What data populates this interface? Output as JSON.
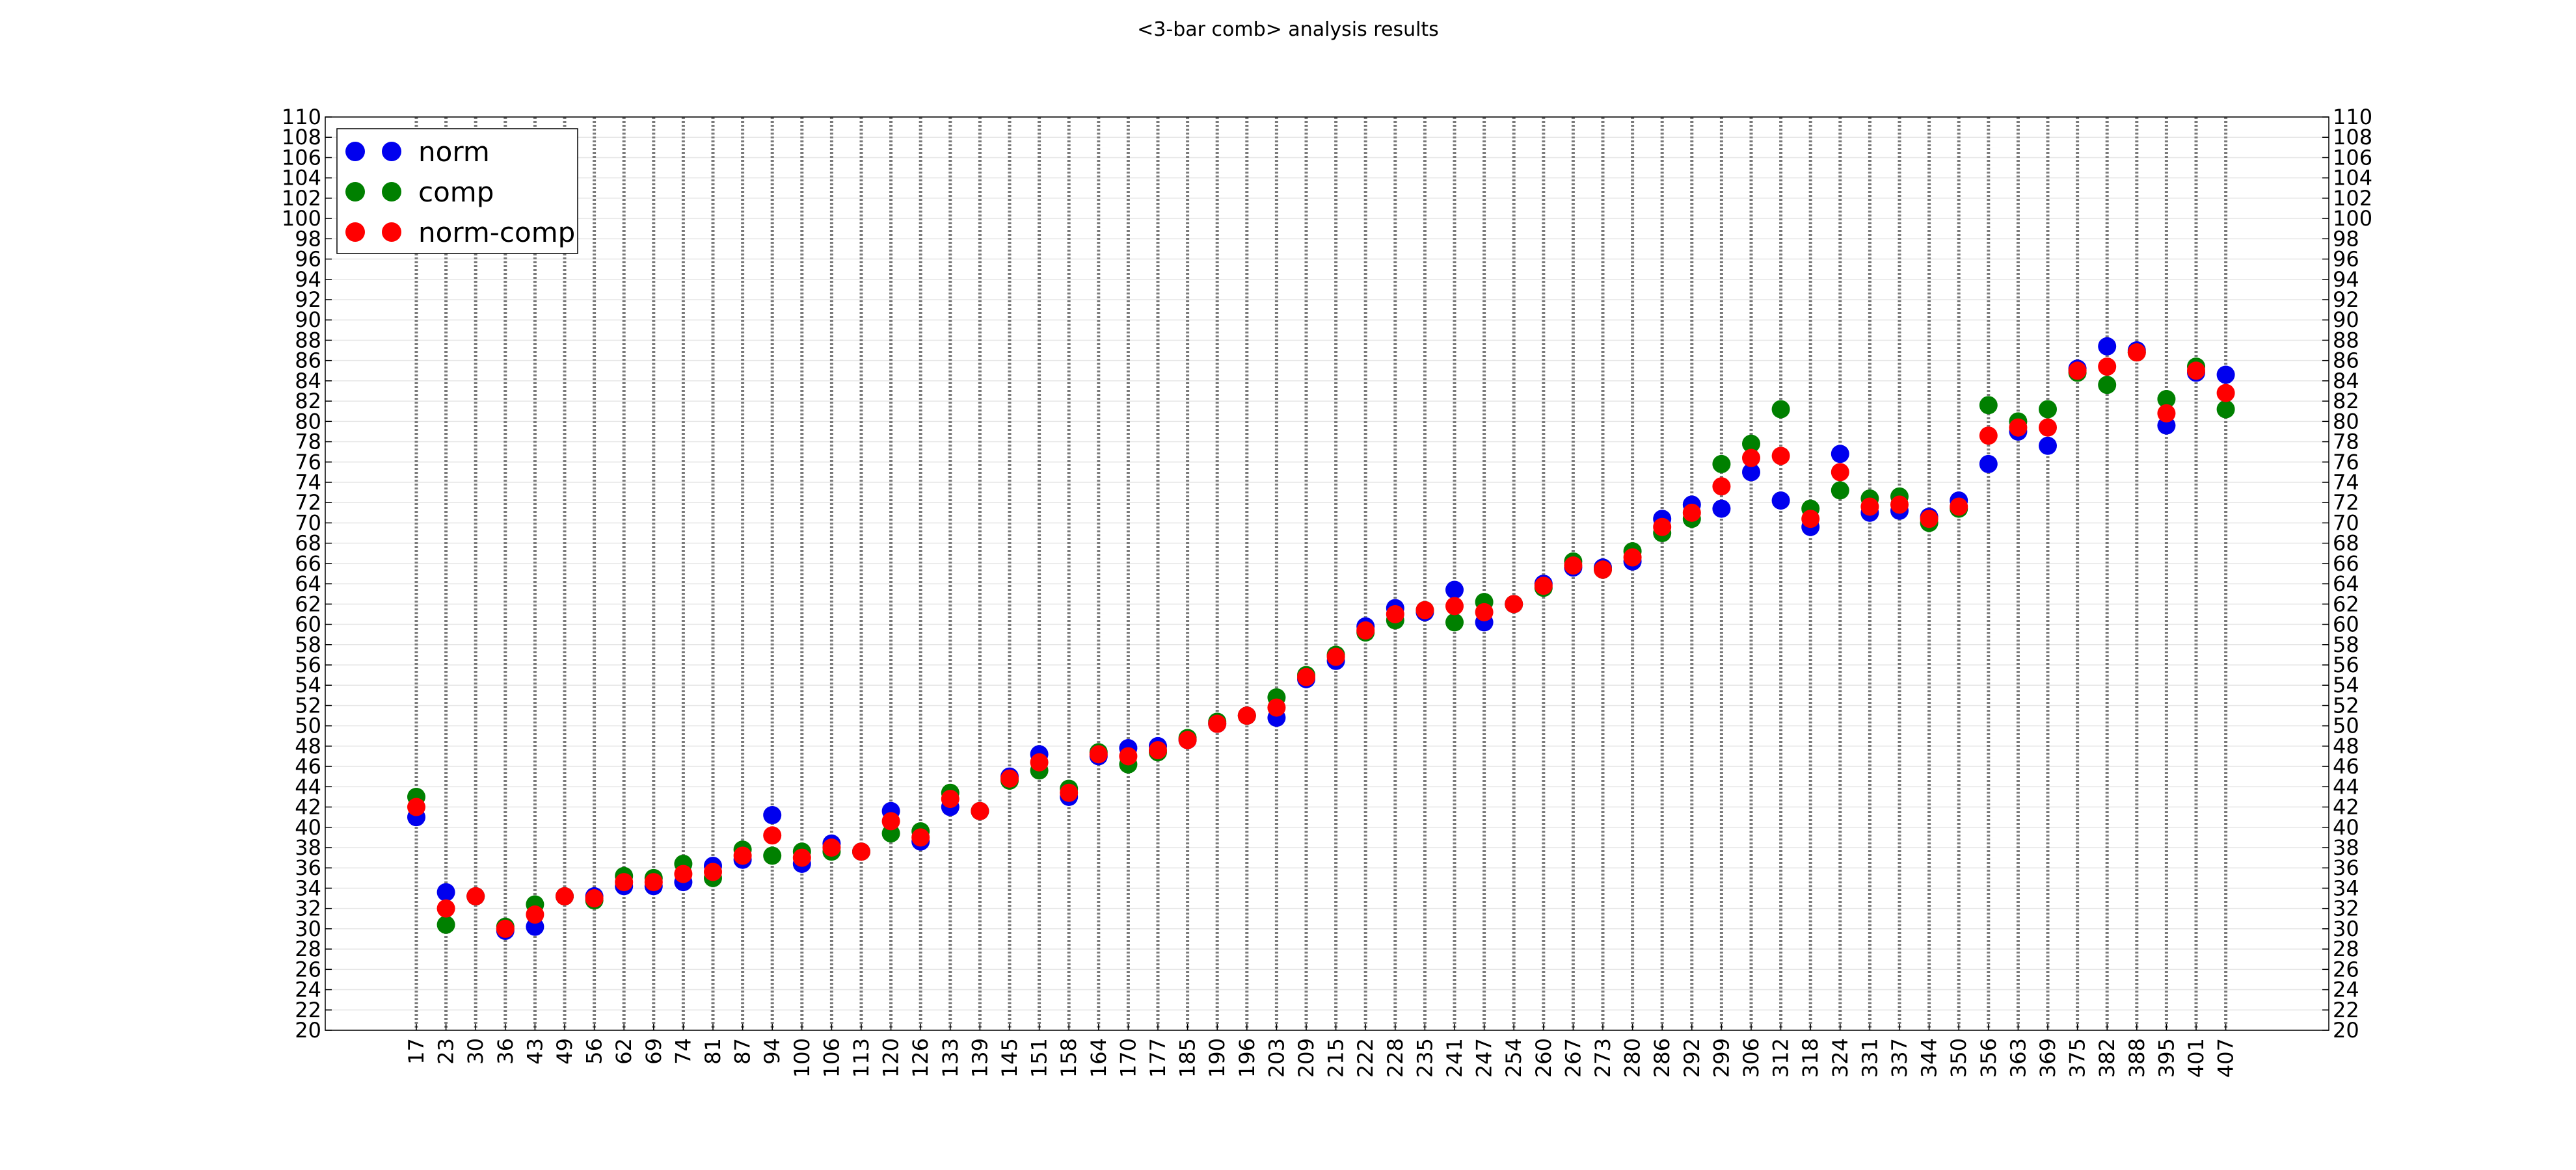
{
  "chart_data": {
    "type": "scatter",
    "title": "<3-bar comb> analysis results",
    "xlabel": "",
    "ylabel": "",
    "ylim": [
      20,
      110
    ],
    "y_tick_step": 2,
    "grid": true,
    "legend_position": "top-left",
    "categories": [
      "17",
      "23",
      "30",
      "36",
      "43",
      "49",
      "56",
      "62",
      "69",
      "74",
      "81",
      "87",
      "94",
      "100",
      "106",
      "113",
      "120",
      "126",
      "133",
      "139",
      "145",
      "151",
      "158",
      "164",
      "170",
      "177",
      "185",
      "190",
      "196",
      "203",
      "209",
      "215",
      "222",
      "228",
      "235",
      "241",
      "247",
      "254",
      "260",
      "267",
      "273",
      "280",
      "286",
      "292",
      "299",
      "306",
      "312",
      "318",
      "324",
      "331",
      "337",
      "344",
      "350",
      "356",
      "363",
      "369",
      "375",
      "382",
      "388",
      "395",
      "401",
      "407"
    ],
    "series": [
      {
        "name": "norm",
        "color": "#0000ee",
        "values": [
          41.0,
          33.6,
          33.2,
          29.8,
          30.2,
          33.2,
          33.2,
          34.2,
          34.2,
          34.6,
          36.2,
          36.8,
          41.2,
          36.4,
          38.4,
          37.6,
          41.6,
          38.6,
          42.0,
          41.6,
          45.0,
          47.2,
          43.0,
          47.0,
          47.8,
          48.0,
          48.6,
          50.2,
          51.0,
          50.8,
          54.6,
          56.4,
          59.8,
          61.6,
          61.2,
          63.4,
          60.2,
          62.0,
          64.0,
          65.6,
          65.6,
          66.2,
          70.4,
          71.8,
          71.4,
          75.0,
          72.2,
          69.6,
          76.8,
          71.0,
          71.2,
          70.6,
          72.2,
          75.8,
          79.0,
          77.6,
          85.2,
          87.4,
          87.0,
          79.6,
          84.8,
          84.6
        ]
      },
      {
        "name": "comp",
        "color": "#008000",
        "values": [
          43.0,
          30.4,
          33.2,
          30.2,
          32.4,
          33.2,
          32.8,
          35.2,
          35.0,
          36.4,
          35.0,
          37.8,
          37.2,
          37.6,
          37.6,
          37.6,
          39.4,
          39.6,
          43.4,
          41.6,
          44.6,
          45.6,
          43.8,
          47.4,
          46.2,
          47.4,
          48.8,
          50.4,
          51.0,
          52.8,
          55.0,
          57.0,
          59.2,
          60.4,
          61.4,
          60.2,
          62.2,
          62.0,
          63.6,
          66.2,
          65.4,
          67.2,
          69.0,
          70.4,
          75.8,
          77.8,
          81.2,
          71.4,
          73.2,
          72.4,
          72.6,
          70.0,
          71.4,
          81.6,
          80.0,
          81.2,
          84.8,
          83.6,
          86.8,
          82.2,
          85.4,
          81.2
        ]
      },
      {
        "name": "norm-comp",
        "color": "#ff0000",
        "values": [
          42.0,
          32.0,
          33.2,
          30.0,
          31.4,
          33.2,
          33.0,
          34.6,
          34.6,
          35.4,
          35.6,
          37.2,
          39.2,
          37.0,
          38.0,
          37.6,
          40.6,
          39.0,
          42.8,
          41.6,
          44.8,
          46.4,
          43.4,
          47.2,
          47.0,
          47.6,
          48.6,
          50.2,
          51.0,
          51.8,
          54.8,
          56.8,
          59.4,
          61.0,
          61.4,
          61.8,
          61.2,
          62.0,
          63.8,
          65.8,
          65.4,
          66.6,
          69.6,
          71.0,
          73.6,
          76.4,
          76.6,
          70.4,
          75.0,
          71.6,
          71.8,
          70.4,
          71.6,
          78.6,
          79.4,
          79.4,
          85.0,
          85.4,
          86.8,
          80.8,
          85.0,
          82.8
        ]
      }
    ]
  }
}
